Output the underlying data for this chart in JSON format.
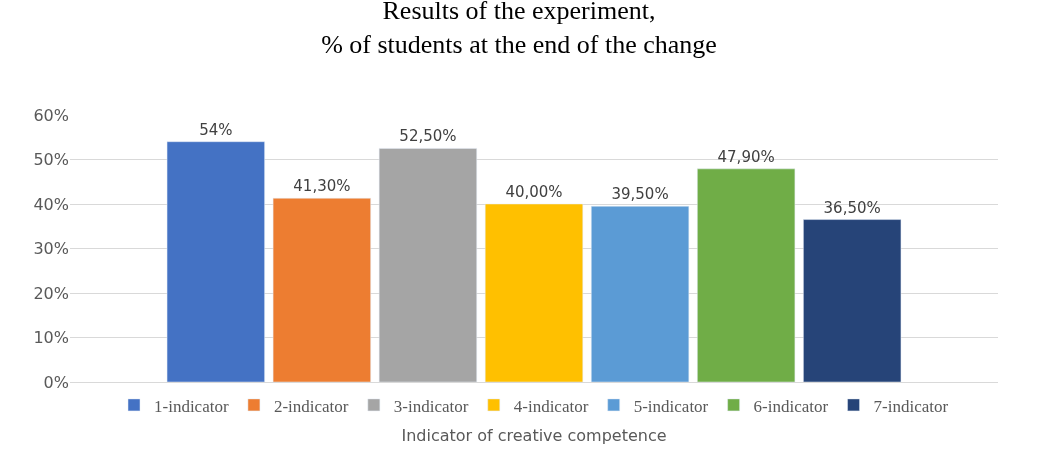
{
  "chart_data": {
    "type": "bar",
    "title": "Results of the experiment,\n% of students at the end of the change",
    "xlabel": "Indicator of creative competence",
    "categories": [
      null
    ],
    "series": [
      {
        "name": "1-indicator",
        "color": "#4472c4",
        "values": [
          54
        ],
        "value_labels": [
          "54%"
        ]
      },
      {
        "name": "2-indicator",
        "color": "#ed7d31",
        "values": [
          41.3
        ],
        "value_labels": [
          "41,30%"
        ]
      },
      {
        "name": "3-indicator",
        "color": "#a5a5a5",
        "values": [
          52.5
        ],
        "value_labels": [
          "52,50%"
        ]
      },
      {
        "name": "4-indicator",
        "color": "#ffc000",
        "values": [
          40
        ],
        "value_labels": [
          "40,00%"
        ]
      },
      {
        "name": "5-indicator",
        "color": "#5b9bd5",
        "values": [
          39.5
        ],
        "value_labels": [
          "39,50%"
        ]
      },
      {
        "name": "6-indicator",
        "color": "#70ad47",
        "values": [
          47.9
        ],
        "value_labels": [
          "47,90%"
        ]
      },
      {
        "name": "7-indicator",
        "color": "#264478",
        "values": [
          36.5
        ],
        "value_labels": [
          "36,50%"
        ]
      }
    ],
    "ylim": [
      0,
      60
    ],
    "yticks": [
      {
        "value": 0,
        "label": "0%"
      },
      {
        "value": 10,
        "label": "10%"
      },
      {
        "value": 20,
        "label": "20%"
      },
      {
        "value": 30,
        "label": "30%"
      },
      {
        "value": 40,
        "label": "40%"
      },
      {
        "value": 50,
        "label": "50%"
      },
      {
        "value": 60,
        "label": "60%"
      }
    ],
    "grid": "y",
    "legend": "bottom"
  }
}
